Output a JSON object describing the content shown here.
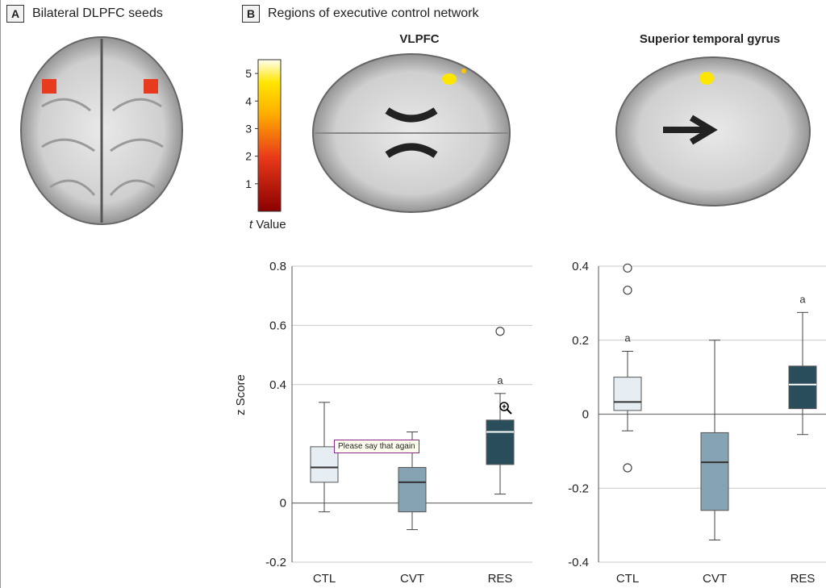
{
  "panel_a": {
    "letter": "A",
    "title": "Bilateral DLPFC seeds"
  },
  "panel_b": {
    "letter": "B",
    "title": "Regions of executive control network"
  },
  "brains": {
    "vlpfc_title": "VLPFC",
    "stg_title": "Superior temporal gyrus"
  },
  "colorbar": {
    "ticks": [
      "1",
      "2",
      "3",
      "4",
      "5"
    ],
    "label_italic": "t",
    "label_rest": " Value"
  },
  "tooltip": "Please say that again",
  "colors": {
    "ctl": "#e6eef3",
    "cvt": "#86a3b3",
    "res": "#2a4d5c",
    "seed": "#e83a1f",
    "hot": "#ffe600"
  },
  "chart_data": [
    {
      "type": "box",
      "ylabel": "z Score",
      "ylim": [
        -0.2,
        0.8
      ],
      "yticks": [
        "0.8",
        "0.6",
        "0.4",
        "0",
        "-0.2"
      ],
      "categories": [
        "CTL",
        "CVT",
        "RES"
      ],
      "boxes": [
        {
          "name": "CTL",
          "whisker_low": -0.03,
          "q1": 0.07,
          "median": 0.12,
          "q3": 0.19,
          "whisker_high": 0.34,
          "outliers": [],
          "annotation": ""
        },
        {
          "name": "CVT",
          "whisker_low": -0.09,
          "q1": -0.03,
          "median": 0.07,
          "q3": 0.12,
          "whisker_high": 0.24,
          "outliers": [],
          "annotation": ""
        },
        {
          "name": "RES",
          "whisker_low": 0.03,
          "q1": 0.13,
          "median": 0.24,
          "q3": 0.28,
          "whisker_high": 0.37,
          "outliers": [
            0.58
          ],
          "annotation": "a"
        }
      ]
    },
    {
      "type": "box",
      "ylabel": "",
      "ylim": [
        -0.4,
        0.4
      ],
      "yticks": [
        "0.4",
        "0.2",
        "0",
        "-0.2",
        "-0.4"
      ],
      "categories": [
        "CTL",
        "CVT",
        "RES"
      ],
      "boxes": [
        {
          "name": "CTL",
          "whisker_low": -0.045,
          "q1": 0.01,
          "median": 0.033,
          "q3": 0.1,
          "whisker_high": 0.17,
          "outliers": [
            0.395,
            0.335,
            -0.145
          ],
          "annotation": "a"
        },
        {
          "name": "CVT",
          "whisker_low": -0.34,
          "q1": -0.26,
          "median": -0.13,
          "q3": -0.05,
          "whisker_high": 0.2,
          "outliers": [],
          "annotation": ""
        },
        {
          "name": "RES",
          "whisker_low": -0.055,
          "q1": 0.015,
          "median": 0.08,
          "q3": 0.13,
          "whisker_high": 0.275,
          "outliers": [],
          "annotation": "a"
        }
      ]
    }
  ]
}
